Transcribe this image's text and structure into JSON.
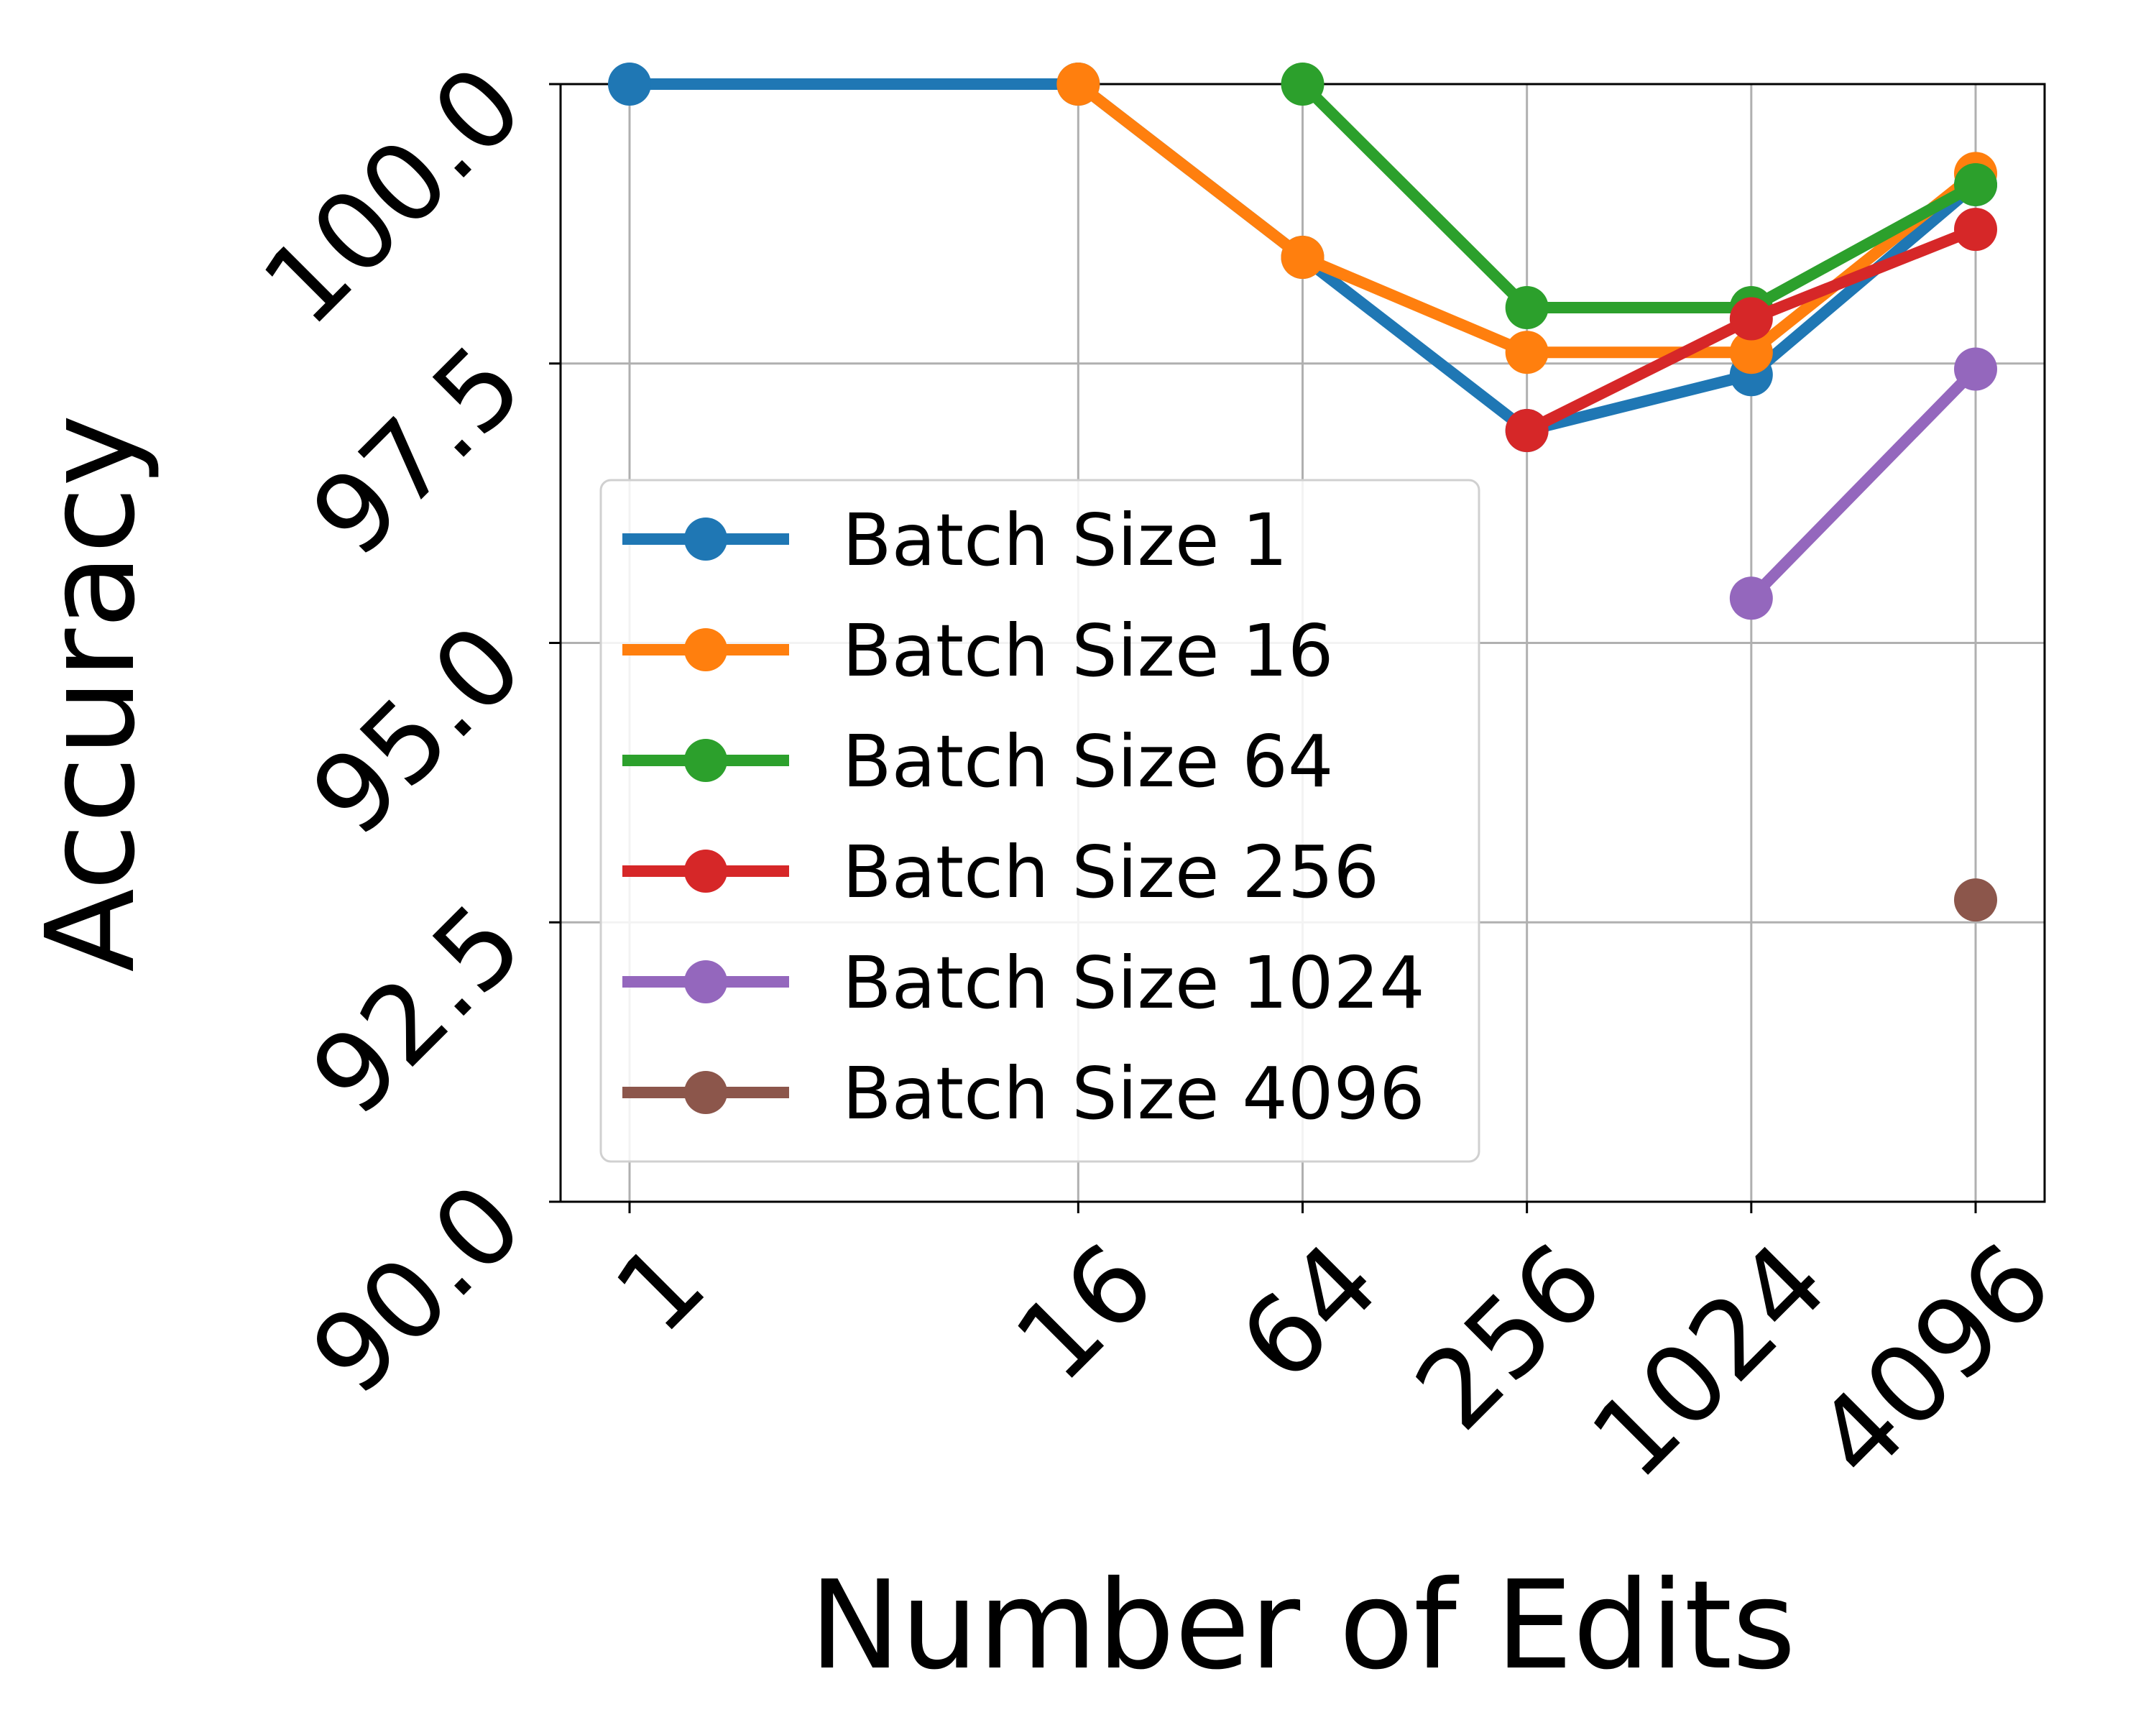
{
  "chart_data": {
    "type": "line",
    "xlabel": "Number of Edits",
    "ylabel": "Accuracy",
    "x_scale": "log2",
    "x_ticks": [
      "1",
      "16",
      "64",
      "256",
      "1024",
      "4096"
    ],
    "x_tick_values": [
      1,
      16,
      64,
      256,
      1024,
      4096
    ],
    "y_ticks": [
      "90.0",
      "92.5",
      "95.0",
      "97.5",
      "100.0"
    ],
    "y_tick_values": [
      90.0,
      92.5,
      95.0,
      97.5,
      100.0
    ],
    "ylim": [
      90.0,
      100.0
    ],
    "grid": true,
    "legend_position": "center-left",
    "series": [
      {
        "name": "Batch Size 1",
        "color": "#1f77b4",
        "points": [
          [
            1,
            100.0
          ],
          [
            16,
            100.0
          ],
          [
            64,
            98.45
          ],
          [
            256,
            96.9
          ],
          [
            1024,
            97.4
          ],
          [
            4096,
            99.1
          ]
        ]
      },
      {
        "name": "Batch Size 16",
        "color": "#ff7f0e",
        "points": [
          [
            16,
            100.0
          ],
          [
            64,
            98.45
          ],
          [
            256,
            97.6
          ],
          [
            1024,
            97.6
          ],
          [
            4096,
            99.2
          ]
        ]
      },
      {
        "name": "Batch Size 64",
        "color": "#2ca02c",
        "points": [
          [
            64,
            100.0
          ],
          [
            256,
            98.0
          ],
          [
            1024,
            98.0
          ],
          [
            4096,
            99.1
          ]
        ]
      },
      {
        "name": "Batch Size 256",
        "color": "#d62728",
        "points": [
          [
            256,
            96.9
          ],
          [
            1024,
            97.9
          ],
          [
            4096,
            98.7
          ]
        ]
      },
      {
        "name": "Batch Size 1024",
        "color": "#9467bd",
        "points": [
          [
            1024,
            95.4
          ],
          [
            4096,
            97.45
          ]
        ]
      },
      {
        "name": "Batch Size 4096",
        "color": "#8c564b",
        "points": [
          [
            4096,
            92.7
          ]
        ]
      }
    ]
  }
}
